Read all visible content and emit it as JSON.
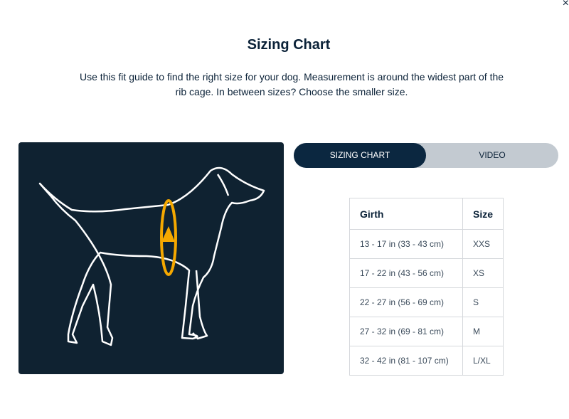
{
  "close_label": "×",
  "title": "Sizing Chart",
  "description": "Use this fit guide to find the right size for your dog. Measurement is around the widest part of the rib cage. In between sizes? Choose the smaller size.",
  "tabs": [
    {
      "label": "SIZING CHART",
      "active": true
    },
    {
      "label": "VIDEO",
      "active": false
    }
  ],
  "table": {
    "headers": [
      "Girth",
      "Size"
    ],
    "rows": [
      [
        "13 - 17 in (33 - 43 cm)",
        "XXS"
      ],
      [
        "17 - 22 in (43 - 56 cm)",
        "XS"
      ],
      [
        "22 - 27 in (56 - 69 cm)",
        "S"
      ],
      [
        "27 - 32 in (69 - 81 cm)",
        "M"
      ],
      [
        "32 - 42 in (81 - 107 cm)",
        "L/XL"
      ]
    ]
  },
  "colors": {
    "navy": "#0b2740",
    "accent": "#f5a800"
  }
}
